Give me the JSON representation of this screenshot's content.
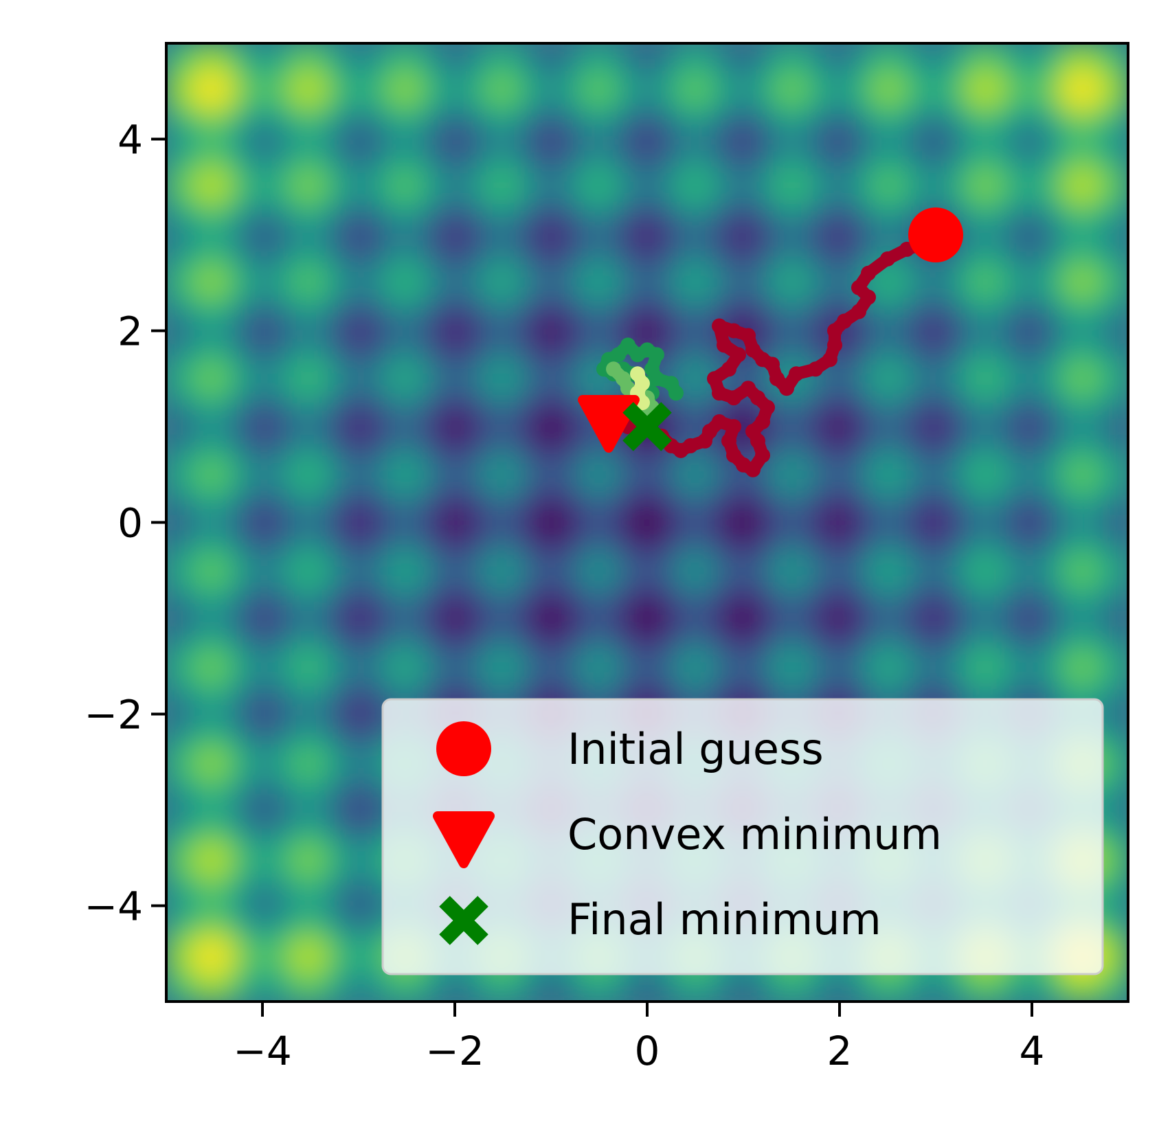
{
  "chart_data": {
    "type": "heatmap",
    "title": "",
    "xlabel": "",
    "ylabel": "",
    "xlim": [
      -5,
      5
    ],
    "ylim": [
      -5,
      5
    ],
    "xticks": [
      -4,
      -2,
      0,
      2,
      4
    ],
    "yticks": [
      -4,
      -2,
      0,
      2,
      4
    ],
    "tick_labels_x": [
      "−4",
      "−2",
      "0",
      "2",
      "4"
    ],
    "tick_labels_y": [
      "−4",
      "−2",
      "0",
      "2",
      "4"
    ],
    "colormap": "viridis",
    "surface": "Rastrigin-like: bright at half-integer lattice points, minimum at origin",
    "grid": false,
    "legend_position": "lower right",
    "markers": {
      "initial_guess": {
        "label": "Initial guess",
        "x": 3.0,
        "y": 3.0,
        "color": "#ff0000",
        "marker": "circle"
      },
      "convex_minimum": {
        "label": "Convex minimum",
        "x": -0.4,
        "y": 1.05,
        "color": "#ff0000",
        "marker": "triangle-down"
      },
      "final_minimum": {
        "label": "Final minimum",
        "x": 0.0,
        "y": 1.0,
        "color": "#008000",
        "marker": "x"
      }
    },
    "paths": [
      {
        "color": "#a50026",
        "points": [
          [
            3.0,
            3.0
          ],
          [
            2.85,
            2.9
          ],
          [
            2.7,
            2.85
          ],
          [
            2.5,
            2.75
          ],
          [
            2.3,
            2.6
          ],
          [
            2.2,
            2.45
          ],
          [
            2.3,
            2.35
          ],
          [
            2.2,
            2.2
          ],
          [
            2.05,
            2.1
          ],
          [
            1.95,
            2.0
          ],
          [
            1.95,
            1.85
          ],
          [
            1.9,
            1.7
          ],
          [
            1.75,
            1.6
          ],
          [
            1.55,
            1.55
          ],
          [
            1.45,
            1.4
          ],
          [
            1.35,
            1.5
          ],
          [
            1.3,
            1.65
          ],
          [
            1.2,
            1.7
          ],
          [
            1.1,
            1.8
          ],
          [
            1.05,
            1.95
          ],
          [
            0.9,
            2.0
          ],
          [
            0.75,
            2.05
          ],
          [
            0.8,
            1.85
          ],
          [
            0.95,
            1.75
          ],
          [
            0.85,
            1.6
          ],
          [
            0.7,
            1.5
          ],
          [
            0.75,
            1.35
          ],
          [
            0.9,
            1.3
          ],
          [
            1.05,
            1.4
          ],
          [
            1.15,
            1.3
          ],
          [
            1.25,
            1.2
          ],
          [
            1.2,
            1.05
          ],
          [
            1.1,
            0.95
          ],
          [
            1.15,
            0.85
          ],
          [
            1.2,
            0.7
          ],
          [
            1.1,
            0.55
          ],
          [
            1.0,
            0.6
          ],
          [
            0.9,
            0.7
          ],
          [
            0.85,
            0.85
          ],
          [
            0.9,
            1.0
          ],
          [
            0.75,
            1.05
          ],
          [
            0.65,
            0.95
          ],
          [
            0.6,
            0.85
          ],
          [
            0.45,
            0.8
          ],
          [
            0.35,
            0.75
          ],
          [
            0.25,
            0.8
          ],
          [
            0.15,
            0.9
          ],
          [
            0.05,
            0.95
          ],
          [
            -0.1,
            1.0
          ],
          [
            -0.2,
            1.0
          ]
        ]
      },
      {
        "color": "#1a9850",
        "points": [
          [
            0.3,
            1.35
          ],
          [
            0.25,
            1.45
          ],
          [
            0.1,
            1.5
          ],
          [
            0.05,
            1.6
          ],
          [
            0.1,
            1.75
          ],
          [
            0.0,
            1.8
          ],
          [
            -0.1,
            1.75
          ],
          [
            -0.2,
            1.85
          ],
          [
            -0.3,
            1.75
          ],
          [
            -0.4,
            1.7
          ],
          [
            -0.45,
            1.6
          ],
          [
            -0.35,
            1.55
          ],
          [
            -0.25,
            1.6
          ],
          [
            -0.15,
            1.55
          ],
          [
            0.0,
            1.45
          ],
          [
            0.05,
            1.35
          ]
        ]
      },
      {
        "color": "#66bd63",
        "points": [
          [
            -0.35,
            1.6
          ],
          [
            -0.25,
            1.5
          ],
          [
            -0.2,
            1.4
          ],
          [
            -0.1,
            1.35
          ],
          [
            0.0,
            1.3
          ],
          [
            0.05,
            1.2
          ],
          [
            -0.05,
            1.1
          ]
        ]
      },
      {
        "color": "#d9ef8b",
        "points": [
          [
            -0.1,
            1.55
          ],
          [
            -0.05,
            1.45
          ],
          [
            -0.1,
            1.35
          ],
          [
            -0.05,
            1.25
          ]
        ]
      }
    ]
  }
}
